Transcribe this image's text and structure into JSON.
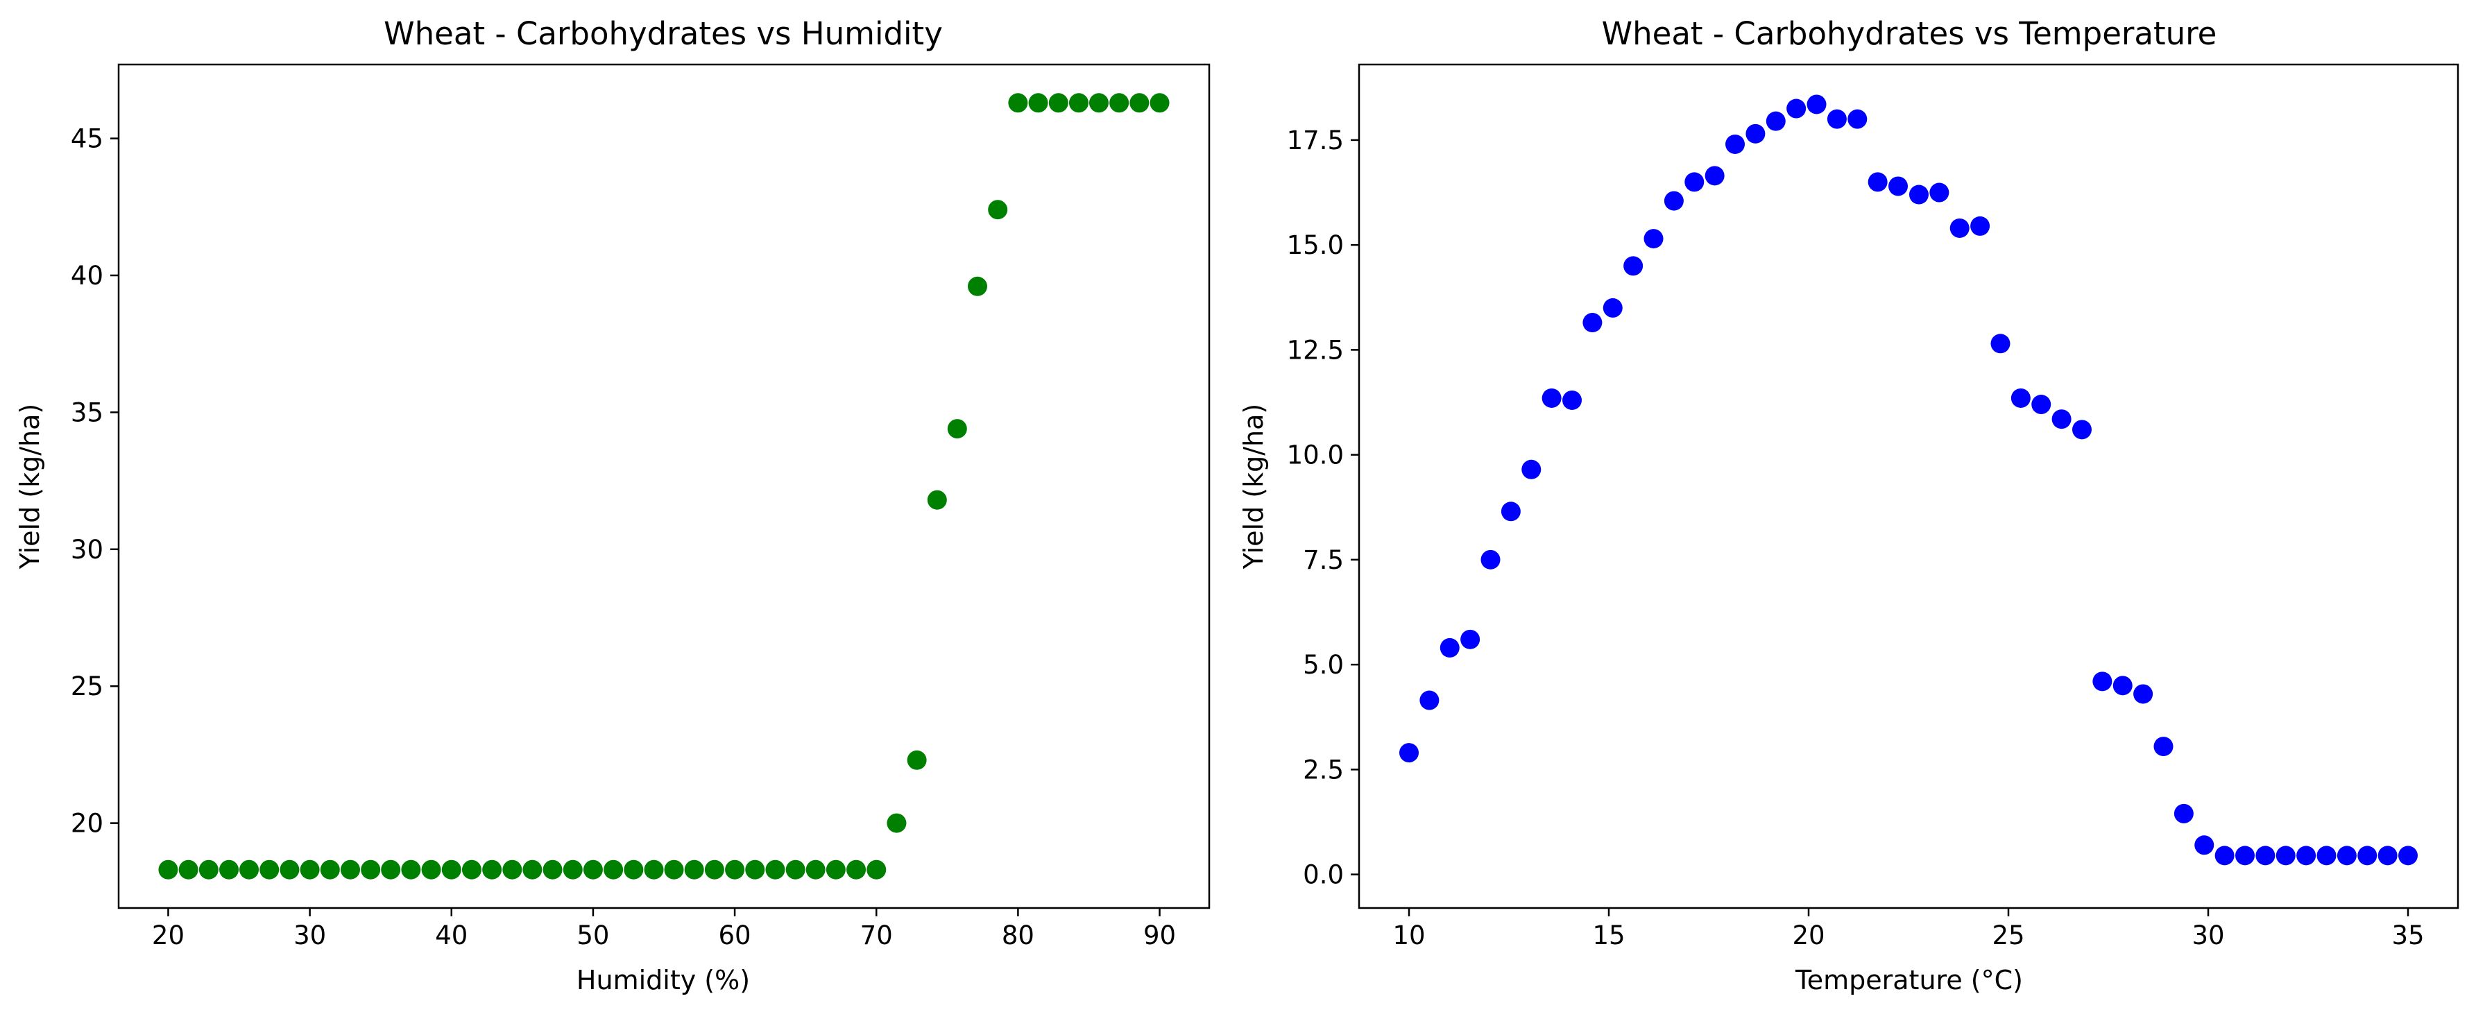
{
  "chart_data": [
    {
      "type": "scatter",
      "title": "Wheat - Carbohydrates vs Humidity",
      "xlabel": "Humidity (%)",
      "ylabel": "Yield (kg/ha)",
      "xlim": [
        16.5,
        93.5
      ],
      "ylim": [
        16.9,
        47.7
      ],
      "xticks": [
        20,
        30,
        40,
        50,
        60,
        70,
        80,
        90
      ],
      "xtick_labels": [
        "20",
        "30",
        "40",
        "50",
        "60",
        "70",
        "80",
        "90"
      ],
      "yticks": [
        20,
        25,
        30,
        35,
        40,
        45
      ],
      "ytick_labels": [
        "20",
        "25",
        "30",
        "35",
        "40",
        "45"
      ],
      "grid": false,
      "color": "#008000",
      "series": [
        {
          "x": [
            20.0,
            21.43,
            22.86,
            24.29,
            25.71,
            27.14,
            28.57,
            30.0,
            31.43,
            32.86,
            34.29,
            35.71,
            37.14,
            38.57,
            40.0,
            41.43,
            42.86,
            44.29,
            45.71,
            47.14,
            48.57,
            50.0,
            51.43,
            52.86,
            54.29,
            55.71,
            57.14,
            58.57,
            60.0,
            61.43,
            62.86,
            64.29,
            65.71,
            67.14,
            68.57,
            70.0,
            71.43,
            72.86,
            74.29,
            75.71,
            77.14,
            78.57,
            80.0,
            81.43,
            82.86,
            84.29,
            85.71,
            87.14,
            88.57,
            90.0
          ],
          "y": [
            18.3,
            18.3,
            18.3,
            18.3,
            18.3,
            18.3,
            18.3,
            18.3,
            18.3,
            18.3,
            18.3,
            18.3,
            18.3,
            18.3,
            18.3,
            18.3,
            18.3,
            18.3,
            18.3,
            18.3,
            18.3,
            18.3,
            18.3,
            18.3,
            18.3,
            18.3,
            18.3,
            18.3,
            18.3,
            18.3,
            18.3,
            18.3,
            18.3,
            18.3,
            18.3,
            18.3,
            20.0,
            22.3,
            31.8,
            34.4,
            39.6,
            42.4,
            46.3,
            46.3,
            46.3,
            46.3,
            46.3,
            46.3,
            46.3,
            46.3
          ]
        }
      ]
    },
    {
      "type": "scatter",
      "title": "Wheat - Carbohydrates vs Temperature",
      "xlabel": "Temperature (°C)",
      "ylabel": "Yield (kg/ha)",
      "xlim": [
        8.75,
        36.25
      ],
      "ylim": [
        -0.8,
        19.3
      ],
      "xticks": [
        10,
        15,
        20,
        25,
        30,
        35
      ],
      "xtick_labels": [
        "10",
        "15",
        "20",
        "25",
        "30",
        "35"
      ],
      "yticks": [
        0,
        2.5,
        5,
        7.5,
        10,
        12.5,
        15,
        17.5
      ],
      "ytick_labels": [
        "0.0",
        "2.5",
        "5.0",
        "7.5",
        "10.0",
        "12.5",
        "15.0",
        "17.5"
      ],
      "grid": false,
      "color": "#0000ff",
      "series": [
        {
          "x": [
            10.0,
            10.51,
            11.02,
            11.53,
            12.04,
            12.55,
            13.06,
            13.57,
            14.08,
            14.59,
            15.1,
            15.61,
            16.12,
            16.63,
            17.14,
            17.65,
            18.16,
            18.67,
            19.18,
            19.69,
            20.2,
            20.71,
            21.22,
            21.73,
            22.24,
            22.76,
            23.27,
            23.78,
            24.29,
            24.8,
            25.31,
            25.82,
            26.33,
            26.84,
            27.35,
            27.86,
            28.37,
            28.88,
            29.39,
            29.9,
            30.41,
            30.92,
            31.43,
            31.94,
            32.45,
            32.96,
            33.47,
            33.98,
            34.49,
            35.0
          ],
          "y": [
            2.9,
            4.15,
            5.4,
            5.6,
            7.5,
            8.65,
            9.65,
            11.35,
            11.3,
            13.15,
            13.5,
            14.5,
            15.15,
            16.05,
            16.5,
            16.65,
            17.4,
            17.65,
            17.95,
            18.25,
            18.35,
            18.0,
            18.0,
            16.5,
            16.4,
            16.2,
            16.25,
            15.4,
            15.45,
            12.65,
            11.35,
            11.2,
            10.85,
            10.6,
            4.6,
            4.5,
            4.3,
            3.05,
            1.45,
            0.7,
            0.45,
            0.45,
            0.45,
            0.45,
            0.45,
            0.45,
            0.45,
            0.45,
            0.45,
            0.45
          ]
        }
      ]
    }
  ]
}
